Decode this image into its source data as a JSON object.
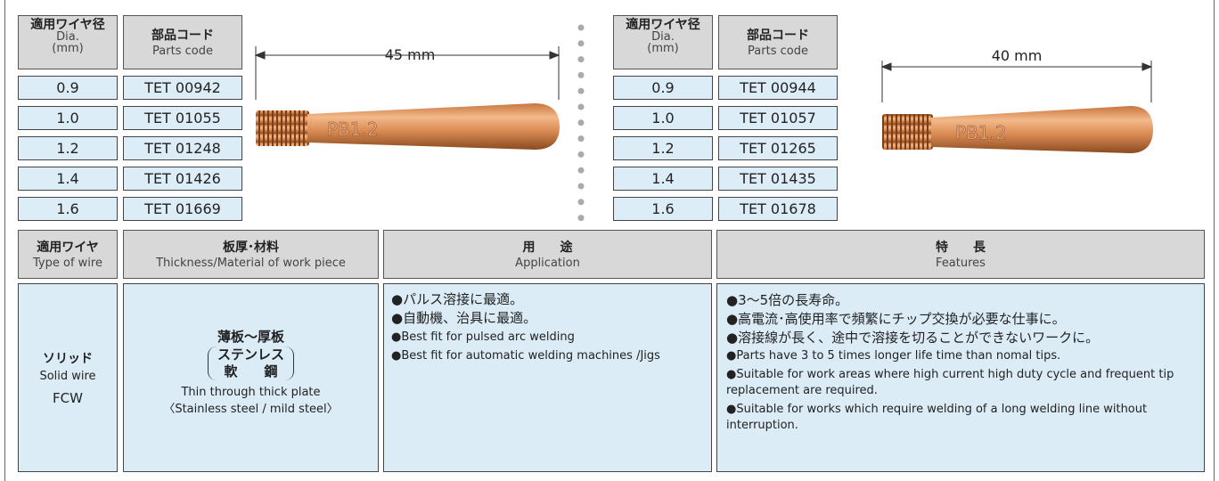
{
  "left_table": {
    "headers": [
      {
        "ja": "適用ワイヤ径",
        "en": "Dia.",
        "unit": "(mm)"
      },
      {
        "ja": "部品コード",
        "en": "Parts code"
      }
    ],
    "rows": [
      [
        "0.9",
        "TET 00942"
      ],
      [
        "1.0",
        "TET 01055"
      ],
      [
        "1.2",
        "TET 01248"
      ],
      [
        "1.4",
        "TET 01426"
      ],
      [
        "1.6",
        "TET 01669"
      ]
    ],
    "length": "45 mm",
    "tip_marking": "PB1.2"
  },
  "right_table": {
    "headers": [
      {
        "ja": "適用ワイヤ径",
        "en": "Dia.",
        "unit": "(mm)"
      },
      {
        "ja": "部品コード",
        "en": "Parts code"
      }
    ],
    "rows": [
      [
        "0.9",
        "TET 00944"
      ],
      [
        "1.0",
        "TET 01057"
      ],
      [
        "1.2",
        "TET 01265"
      ],
      [
        "1.4",
        "TET 01435"
      ],
      [
        "1.6",
        "TET 01678"
      ]
    ],
    "length": "40 mm",
    "tip_marking": "PB1.2"
  },
  "spec_table": {
    "headers": [
      {
        "ja": "適用ワイヤ",
        "en": "Type of wire"
      },
      {
        "ja": "板厚･材料",
        "en": "Thickness/Material of work piece"
      },
      {
        "ja": "用　　途",
        "en": "Application"
      },
      {
        "ja": "特　　長",
        "en": "Features"
      }
    ],
    "wire": {
      "ja": "ソリッド",
      "en": "Solid wire",
      "alt": "FCW"
    },
    "thickness": {
      "ja": [
        "薄板～厚板",
        "ステンレス",
        "軟　　鋼"
      ],
      "en": [
        "Thin through thick plate",
        "〈Stainless steel / mild steel〉"
      ]
    },
    "application": [
      "●パルス溶接に最適。",
      "●自動機、治具に最適。",
      "●Best fit for pulsed arc welding",
      "●Best fit for automatic welding machines /Jigs"
    ],
    "features": [
      "●3～5倍の長寿命。",
      "●高電流･高使用率で頻繁にチップ交換が必要な仕事に。",
      "●溶接線が長く、途中で溶接を切ることができないワークに。",
      "●Parts have 3 to 5 times longer life time than nomal tips.",
      "●Suitable for work areas where high current high duty cycle and frequent tip replacement are required.",
      "●Suitable for works which require welding of a long welding line without interruption."
    ]
  }
}
